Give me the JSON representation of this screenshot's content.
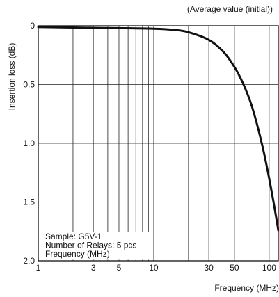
{
  "chart_data": {
    "type": "line",
    "title": "(Average value (initial))",
    "xlabel": "Frequency (MHz)",
    "ylabel": "Insertion loss (dB)",
    "x_scale": "log",
    "xlim": [
      1,
      120
    ],
    "ylim": [
      0,
      2.0
    ],
    "y_inverted": true,
    "grid": true,
    "x_ticks": [
      {
        "value": 1,
        "label": "1"
      },
      {
        "value": 2,
        "label": ""
      },
      {
        "value": 3,
        "label": "3"
      },
      {
        "value": 4,
        "label": ""
      },
      {
        "value": 5,
        "label": "5"
      },
      {
        "value": 6,
        "label": ""
      },
      {
        "value": 7,
        "label": ""
      },
      {
        "value": 8,
        "label": ""
      },
      {
        "value": 9,
        "label": ""
      },
      {
        "value": 10,
        "label": "10"
      },
      {
        "value": 20,
        "label": ""
      },
      {
        "value": 30,
        "label": "30"
      },
      {
        "value": 50,
        "label": "50"
      },
      {
        "value": 100,
        "label": "100"
      }
    ],
    "y_ticks": [
      {
        "value": 0,
        "label": "0"
      },
      {
        "value": 0.5,
        "label": "0.5"
      },
      {
        "value": 1.0,
        "label": "1.0"
      },
      {
        "value": 1.5,
        "label": "1.5"
      },
      {
        "value": 2.0,
        "label": "2.0"
      }
    ],
    "annotation_lines": [
      "Sample: G5V-1",
      "Number of Relays: 5 pcs",
      "Frequency (MHz)"
    ],
    "series": [
      {
        "x": [
          1,
          2,
          5,
          10,
          15,
          20,
          30,
          40,
          50,
          60,
          70,
          80,
          90,
          100,
          110,
          120
        ],
        "y": [
          0.01,
          0.015,
          0.02,
          0.025,
          0.035,
          0.055,
          0.12,
          0.22,
          0.35,
          0.5,
          0.67,
          0.87,
          1.08,
          1.3,
          1.52,
          1.74
        ]
      }
    ]
  }
}
